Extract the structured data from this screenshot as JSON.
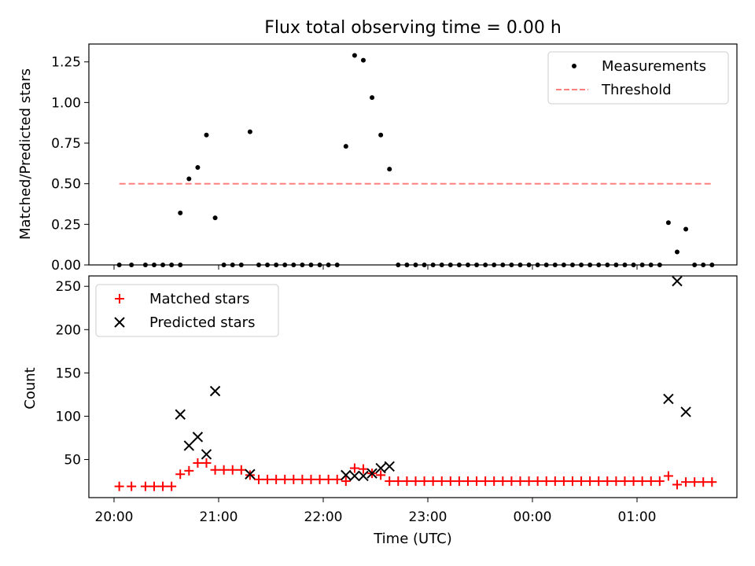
{
  "chart_data": [
    {
      "type": "scatter",
      "title": "Flux total observing time = 0.00 h",
      "xlabel": "",
      "ylabel": "Matched/Predicted stars",
      "ylim": [
        0,
        1.36
      ],
      "yticks": [
        "0.00",
        "0.25",
        "0.50",
        "0.75",
        "1.00",
        "1.25"
      ],
      "legend_position": "upper right",
      "series": [
        {
          "name": "Measurements",
          "marker": "dot",
          "color": "#000000",
          "points": [
            [
              "20:03",
              0
            ],
            [
              "20:10",
              0
            ],
            [
              "20:18",
              0
            ],
            [
              "20:23",
              0
            ],
            [
              "20:28",
              0
            ],
            [
              "20:33",
              0
            ],
            [
              "20:38",
              0
            ],
            [
              "20:38",
              0.32
            ],
            [
              "20:43",
              0.53
            ],
            [
              "20:48",
              0.6
            ],
            [
              "20:53",
              0.8
            ],
            [
              "20:58",
              0.29
            ],
            [
              "21:03",
              0
            ],
            [
              "21:08",
              0
            ],
            [
              "21:13",
              0
            ],
            [
              "21:18",
              0.82
            ],
            [
              "21:23",
              0
            ],
            [
              "21:28",
              0
            ],
            [
              "21:33",
              0
            ],
            [
              "21:38",
              0
            ],
            [
              "21:43",
              0
            ],
            [
              "21:48",
              0
            ],
            [
              "21:53",
              0
            ],
            [
              "21:58",
              0
            ],
            [
              "22:03",
              0
            ],
            [
              "22:08",
              0
            ],
            [
              "22:13",
              0.73
            ],
            [
              "22:18",
              1.29
            ],
            [
              "22:23",
              1.26
            ],
            [
              "22:28",
              1.03
            ],
            [
              "22:33",
              0.8
            ],
            [
              "22:38",
              0.59
            ],
            [
              "22:43",
              0
            ],
            [
              "22:48",
              0
            ],
            [
              "22:53",
              0
            ],
            [
              "22:58",
              0
            ],
            [
              "23:03",
              0
            ],
            [
              "23:08",
              0
            ],
            [
              "23:13",
              0
            ],
            [
              "23:18",
              0
            ],
            [
              "23:23",
              0
            ],
            [
              "23:28",
              0
            ],
            [
              "23:33",
              0
            ],
            [
              "23:38",
              0
            ],
            [
              "23:43",
              0
            ],
            [
              "23:48",
              0
            ],
            [
              "23:53",
              0
            ],
            [
              "23:58",
              0
            ],
            [
              "00:03",
              0
            ],
            [
              "00:08",
              0
            ],
            [
              "00:13",
              0
            ],
            [
              "00:18",
              0
            ],
            [
              "00:23",
              0
            ],
            [
              "00:28",
              0
            ],
            [
              "00:33",
              0
            ],
            [
              "00:38",
              0
            ],
            [
              "00:43",
              0
            ],
            [
              "00:48",
              0
            ],
            [
              "00:53",
              0
            ],
            [
              "00:58",
              0
            ],
            [
              "01:03",
              0
            ],
            [
              "01:08",
              0
            ],
            [
              "01:13",
              0
            ],
            [
              "01:18",
              0.26
            ],
            [
              "01:23",
              0.08
            ],
            [
              "01:28",
              0.22
            ],
            [
              "01:33",
              0
            ],
            [
              "01:38",
              0
            ],
            [
              "01:43",
              0
            ]
          ]
        },
        {
          "name": "Threshold",
          "line": "dashed",
          "color": "#ff7f7f",
          "points": [
            [
              "20:03",
              0.5
            ],
            [
              "01:43",
              0.5
            ]
          ]
        }
      ]
    },
    {
      "type": "scatter",
      "title": "",
      "xlabel": "Time (UTC)",
      "ylabel": "Count",
      "ylim": [
        6,
        262
      ],
      "yticks": [
        "50",
        "100",
        "150",
        "200",
        "250"
      ],
      "xticks": [
        "20:00",
        "21:00",
        "22:00",
        "23:00",
        "00:00",
        "01:00"
      ],
      "legend_position": "upper left",
      "series": [
        {
          "name": "Matched stars",
          "marker": "plus",
          "color": "#ff0000",
          "points": [
            [
              "20:03",
              19
            ],
            [
              "20:10",
              19
            ],
            [
              "20:18",
              19
            ],
            [
              "20:23",
              19
            ],
            [
              "20:28",
              19
            ],
            [
              "20:33",
              19
            ],
            [
              "20:38",
              33
            ],
            [
              "20:43",
              37
            ],
            [
              "20:48",
              46
            ],
            [
              "20:53",
              46
            ],
            [
              "20:58",
              38
            ],
            [
              "21:03",
              38
            ],
            [
              "21:08",
              38
            ],
            [
              "21:13",
              38
            ],
            [
              "21:18",
              32
            ],
            [
              "21:23",
              27
            ],
            [
              "21:28",
              27
            ],
            [
              "21:33",
              27
            ],
            [
              "21:38",
              27
            ],
            [
              "21:43",
              27
            ],
            [
              "21:48",
              27
            ],
            [
              "21:53",
              27
            ],
            [
              "21:58",
              27
            ],
            [
              "22:03",
              27
            ],
            [
              "22:08",
              27
            ],
            [
              "22:13",
              25
            ],
            [
              "22:18",
              40
            ],
            [
              "22:23",
              39
            ],
            [
              "22:28",
              34
            ],
            [
              "22:33",
              32
            ],
            [
              "22:38",
              25
            ],
            [
              "22:43",
              25
            ],
            [
              "22:48",
              25
            ],
            [
              "22:53",
              25
            ],
            [
              "22:58",
              25
            ],
            [
              "23:03",
              25
            ],
            [
              "23:08",
              25
            ],
            [
              "23:13",
              25
            ],
            [
              "23:18",
              25
            ],
            [
              "23:23",
              25
            ],
            [
              "23:28",
              25
            ],
            [
              "23:33",
              25
            ],
            [
              "23:38",
              25
            ],
            [
              "23:43",
              25
            ],
            [
              "23:48",
              25
            ],
            [
              "23:53",
              25
            ],
            [
              "23:58",
              25
            ],
            [
              "00:03",
              25
            ],
            [
              "00:08",
              25
            ],
            [
              "00:13",
              25
            ],
            [
              "00:18",
              25
            ],
            [
              "00:23",
              25
            ],
            [
              "00:28",
              25
            ],
            [
              "00:33",
              25
            ],
            [
              "00:38",
              25
            ],
            [
              "00:43",
              25
            ],
            [
              "00:48",
              25
            ],
            [
              "00:53",
              25
            ],
            [
              "00:58",
              25
            ],
            [
              "01:03",
              25
            ],
            [
              "01:08",
              25
            ],
            [
              "01:13",
              25
            ],
            [
              "01:18",
              31
            ],
            [
              "01:23",
              21
            ],
            [
              "01:28",
              24
            ],
            [
              "01:33",
              24
            ],
            [
              "01:38",
              24
            ],
            [
              "01:43",
              24
            ]
          ]
        },
        {
          "name": "Predicted stars",
          "marker": "x",
          "color": "#000000",
          "points": [
            [
              "20:38",
              102
            ],
            [
              "20:43",
              66
            ],
            [
              "20:48",
              76
            ],
            [
              "20:53",
              56
            ],
            [
              "20:58",
              129
            ],
            [
              "21:18",
              33
            ],
            [
              "22:13",
              32
            ],
            [
              "22:18",
              31
            ],
            [
              "22:23",
              31
            ],
            [
              "22:28",
              34
            ],
            [
              "22:33",
              40
            ],
            [
              "22:38",
              42
            ],
            [
              "01:18",
              120
            ],
            [
              "01:23",
              256
            ],
            [
              "01:28",
              105
            ]
          ]
        }
      ]
    }
  ]
}
